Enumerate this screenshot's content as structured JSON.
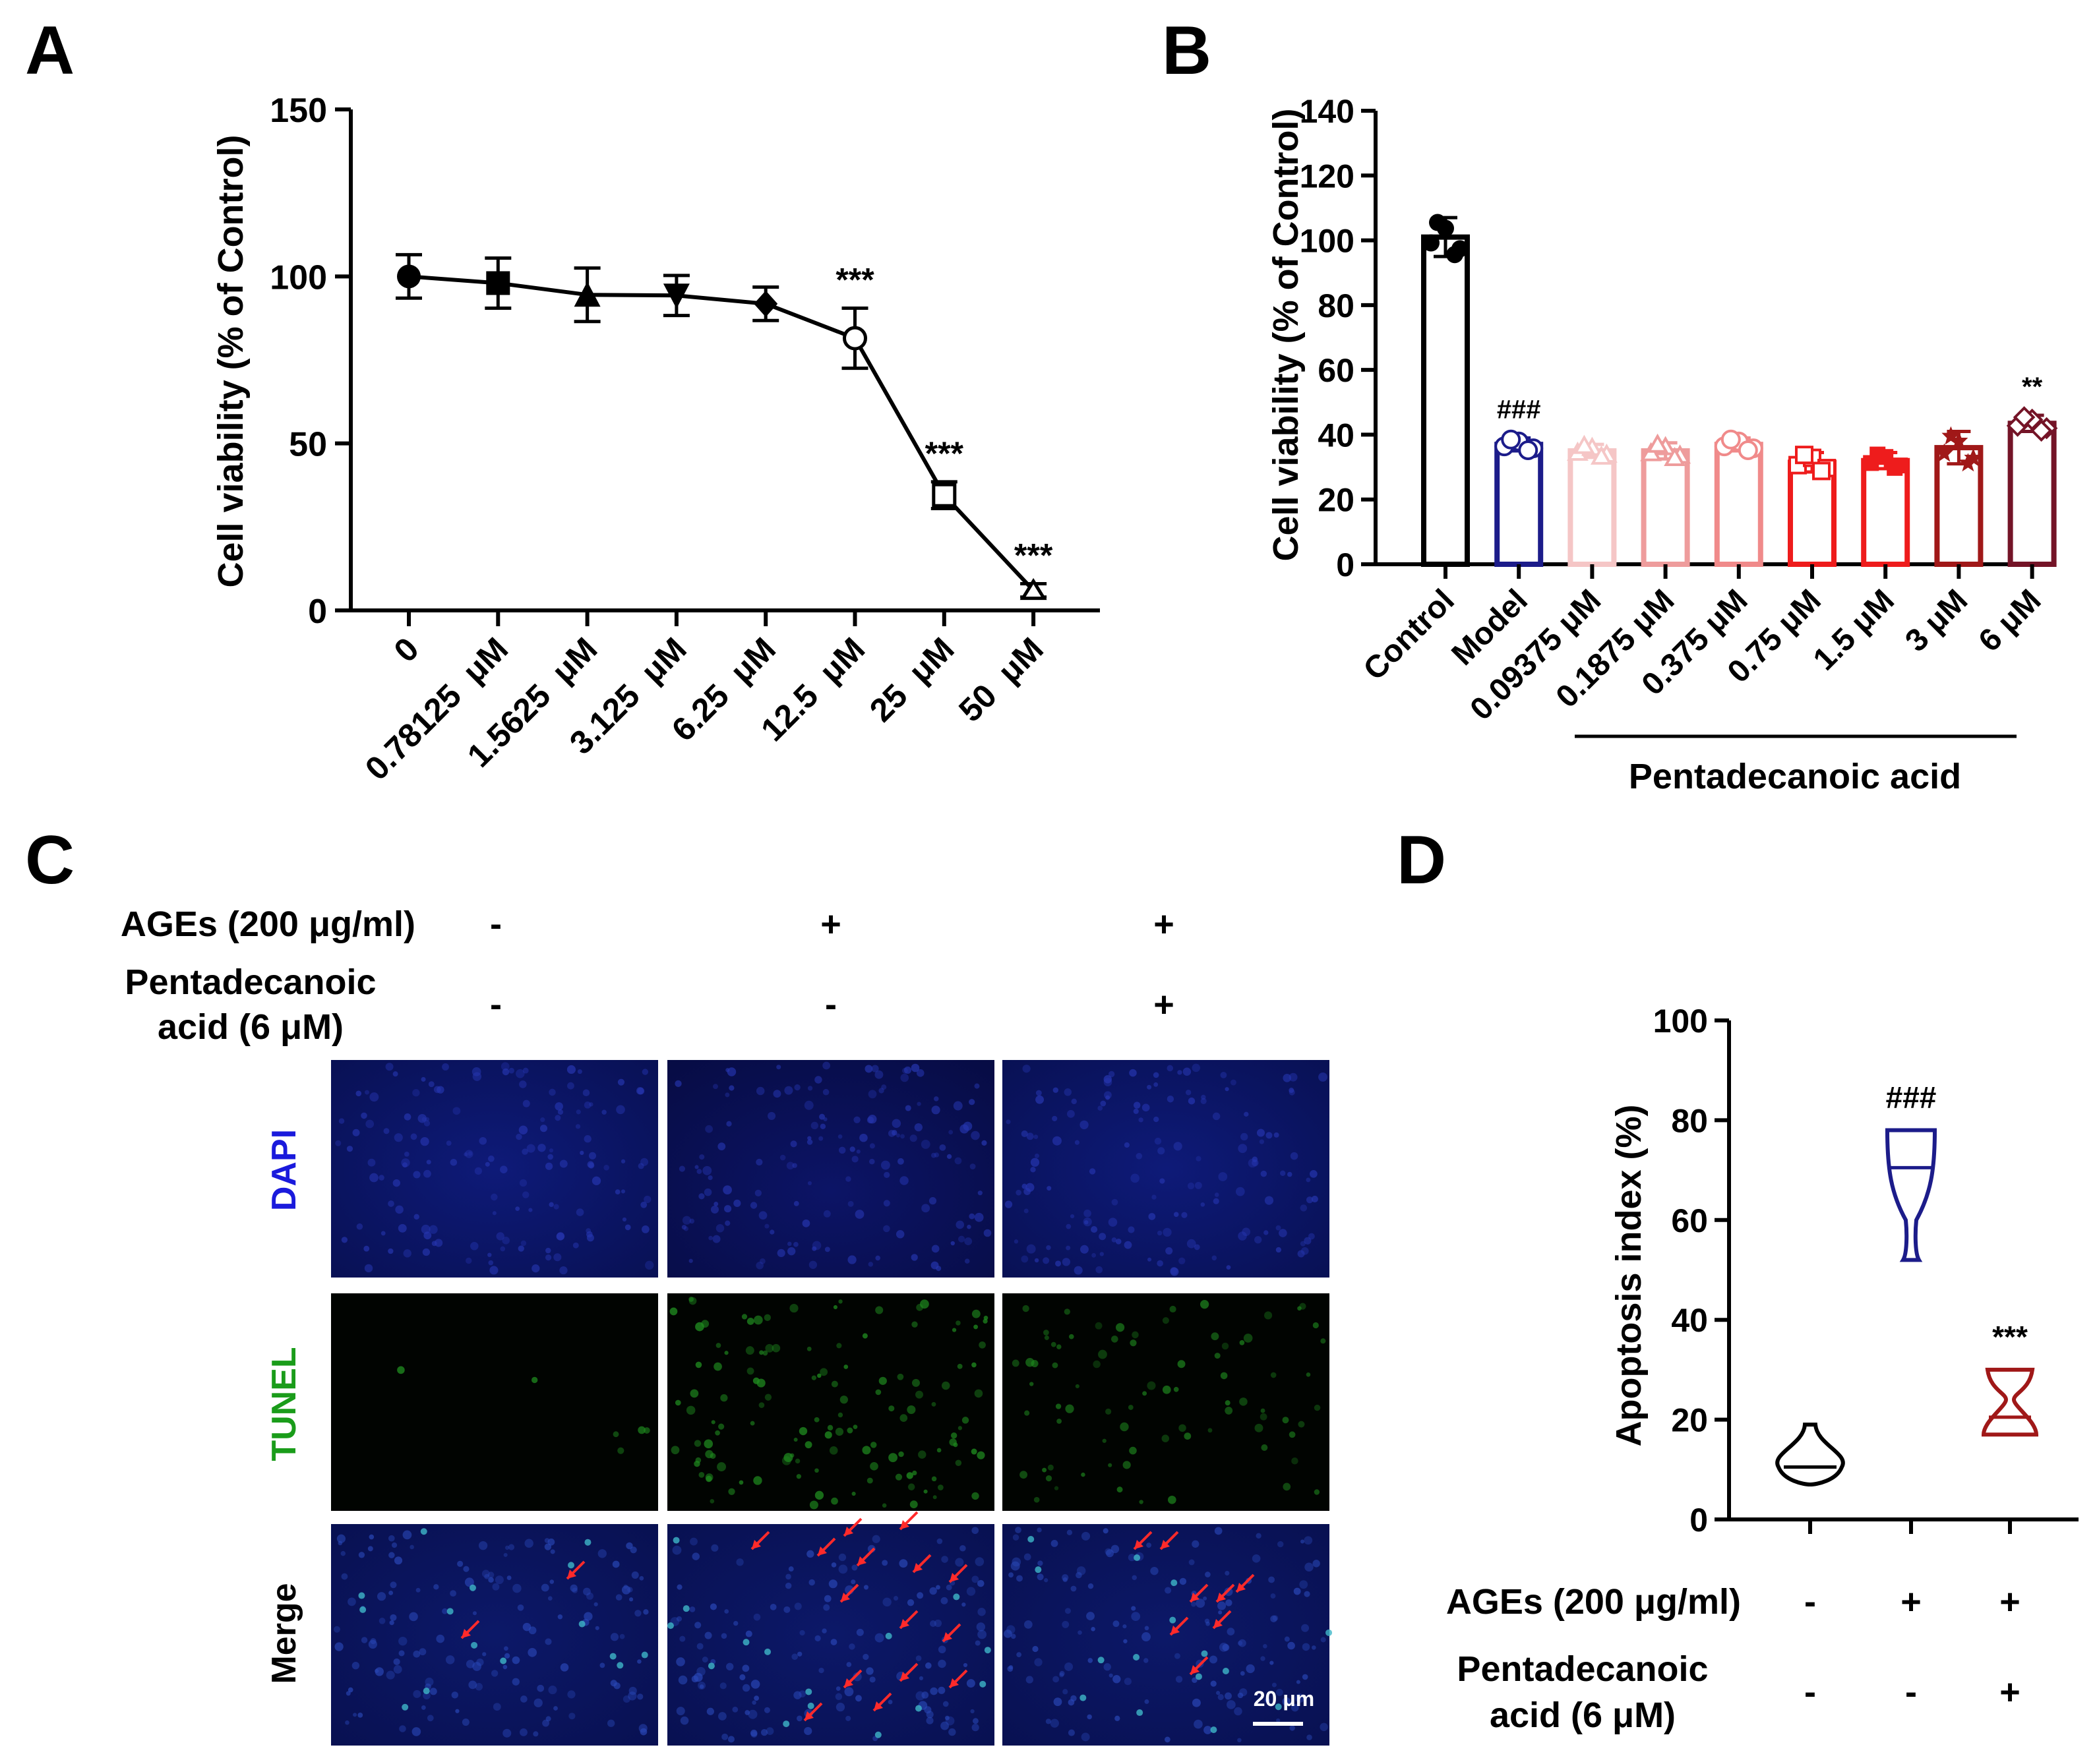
{
  "chart_data": [
    {
      "panel": "A",
      "type": "line",
      "ylabel": "Cell viability (% of Control)",
      "ylim": [
        0,
        150
      ],
      "yticks": [
        "0",
        "50",
        "100",
        "150"
      ],
      "categories": [
        "0",
        "0.78125  μM",
        "1.5625  μM",
        "3.125  μM",
        "6.25  μM",
        "12.5  μM",
        "25  μM",
        "50  μM"
      ],
      "values": [
        100,
        98,
        94.5,
        94.3,
        91.8,
        81.5,
        34.5,
        6
      ],
      "errors": [
        6.5,
        7.5,
        8,
        6,
        5,
        9,
        4,
        2
      ],
      "markers": [
        "circle",
        "square",
        "triangle-up",
        "triangle-down",
        "diamond",
        "circle-open",
        "square-open",
        "triangle-open"
      ],
      "significance": [
        "",
        "",
        "",
        "",
        "",
        "***",
        "***",
        "***"
      ]
    },
    {
      "panel": "B",
      "type": "bar",
      "ylabel": "Cell viability (% of Control)",
      "ylim": [
        0,
        140
      ],
      "yticks": [
        "0",
        "20",
        "40",
        "60",
        "80",
        "100",
        "120",
        "140"
      ],
      "categories": [
        "Control",
        "Model",
        "0.09375 μM",
        "0.1875 μM",
        "0.375 μM",
        "0.75 μM",
        "1.5 μM",
        "3 μM",
        "6 μM"
      ],
      "values": [
        101,
        37,
        35,
        35,
        37,
        31.5,
        32,
        36,
        43.5
      ],
      "errors": [
        6,
        2,
        2,
        2.5,
        2,
        3,
        2.5,
        5,
        2.5
      ],
      "colors": [
        "#000000",
        "#1c1c8a",
        "#f5c6c6",
        "#ee9c9c",
        "#f08a8a",
        "#ee1c1c",
        "#ee1c1c",
        "#a01818",
        "#741427"
      ],
      "significance": [
        "",
        "###",
        "",
        "",
        "",
        "",
        "",
        "",
        "**"
      ],
      "group_label": "Pentadecanoic acid"
    },
    {
      "panel": "D",
      "type": "violin",
      "ylabel": "Apoptosis index (%)",
      "ylim": [
        0,
        100
      ],
      "yticks": [
        "0",
        "20",
        "40",
        "60",
        "80",
        "100"
      ],
      "groups": [
        {
          "min": 7,
          "max": 19,
          "median": 10.5,
          "color": "#000000",
          "sig": ""
        },
        {
          "min": 52,
          "max": 78,
          "median": 70.5,
          "color": "#1c1c8a",
          "sig": "###"
        },
        {
          "min": 17,
          "max": 30,
          "median": 20.5,
          "color": "#a01818",
          "sig": "***"
        }
      ],
      "condition_rows": [
        {
          "label": "AGEs (200 μg/ml)",
          "marks": [
            "-",
            "+",
            "+"
          ]
        },
        {
          "label": "Pentadecanoic acid (6 μM)",
          "marks": [
            "-",
            "-",
            "+"
          ]
        }
      ]
    }
  ],
  "panel_letters": [
    "A",
    "B",
    "C",
    "D"
  ],
  "panelC": {
    "conditions": [
      {
        "label": "AGEs (200 μg/ml)",
        "marks": [
          "-",
          "+",
          "+"
        ]
      },
      {
        "label": "Pentadecanoic acid (6 μM)",
        "marks": [
          "-",
          "-",
          "+"
        ]
      }
    ],
    "row_labels": [
      "DAPI",
      "TUNEL",
      "Merge"
    ],
    "row_label_colors": [
      "#1a1adc",
      "#1a9c1a",
      "#000000"
    ],
    "scale_bar": "20 μm"
  }
}
